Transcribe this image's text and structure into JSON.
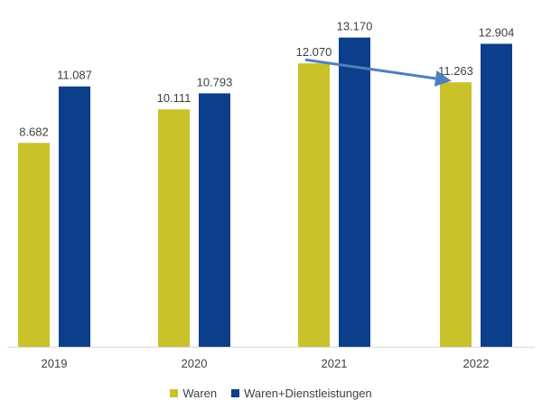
{
  "chart_data": {
    "type": "bar",
    "categories": [
      "2019",
      "2020",
      "2021",
      "2022"
    ],
    "series": [
      {
        "name": "Waren",
        "values": [
          8682,
          10111,
          12070,
          11263
        ],
        "labels": [
          "8.682",
          "10.111",
          "12.070",
          "11.263"
        ],
        "color": "#c9c22a"
      },
      {
        "name": "Waren+Dienstleistungen",
        "values": [
          11087,
          10793,
          13170,
          12904
        ],
        "labels": [
          "11.087",
          "10.793",
          "13.170",
          "12.904"
        ],
        "color": "#0b3f8c"
      }
    ],
    "ylim": [
      0,
      14000
    ],
    "grid": false,
    "legend_position": "bottom",
    "annotation": {
      "type": "arrow",
      "from": "2021 Waren",
      "to": "2022 Waren",
      "color": "#4f7fbf"
    }
  }
}
